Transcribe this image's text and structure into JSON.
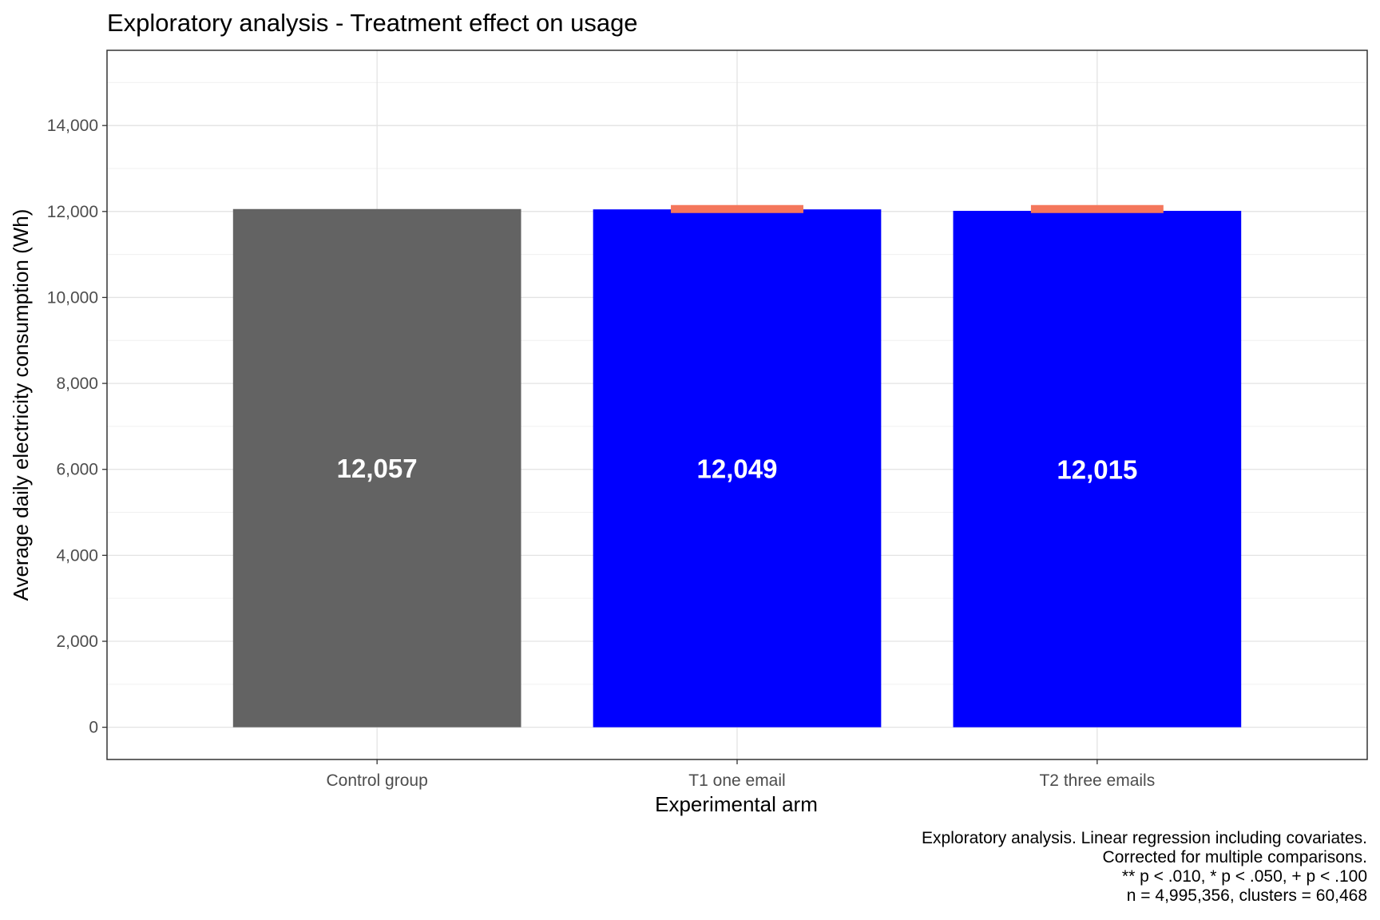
{
  "chart_data": {
    "type": "bar",
    "title": "Exploratory analysis - Treatment effect on usage",
    "xlabel": "Experimental arm",
    "ylabel": "Average daily electricity consumption (Wh)",
    "categories": [
      "Control group",
      "T1 one email",
      "T2 three emails"
    ],
    "values": [
      12057,
      12049,
      12015
    ],
    "value_labels": [
      "12,057",
      "12,049",
      "12,015"
    ],
    "bar_colors": [
      "#636363",
      "#0000ff",
      "#0000ff"
    ],
    "reference_marks": [
      {
        "category": "T1 one email",
        "value": 12057
      },
      {
        "category": "T2 three emails",
        "value": 12057
      }
    ],
    "reference_color": "#f4775c",
    "ylim": [
      -750,
      15750
    ],
    "yticks": [
      0,
      2000,
      4000,
      6000,
      8000,
      10000,
      12000,
      14000
    ],
    "ytick_labels": [
      "0",
      "2,000",
      "4,000",
      "6,000",
      "8,000",
      "10,000",
      "12,000",
      "14,000"
    ],
    "grid": true,
    "caption_lines": [
      "Exploratory analysis. Linear regression including covariates.",
      "Corrected for multiple comparisons.",
      "** p < .010, * p < .050, + p < .100",
      "n = 4,995,356, clusters = 60,468"
    ]
  }
}
